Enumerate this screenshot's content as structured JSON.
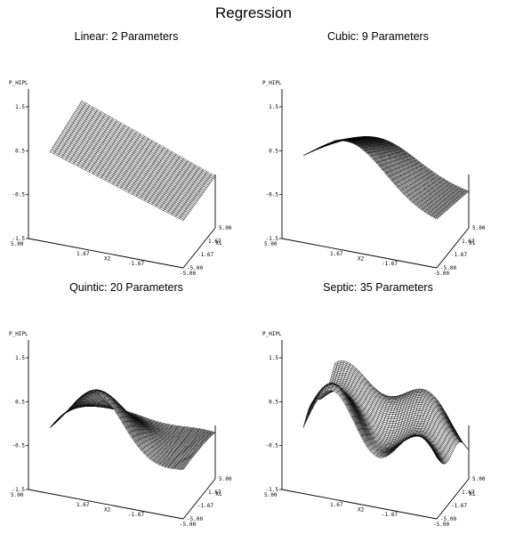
{
  "title": "Regression",
  "chart_data": [
    {
      "type": "surface",
      "title": "Linear: 2 Parameters",
      "zlabel": "P_HIPL",
      "xlabel": "X2",
      "ylabel": "X1",
      "zticks": [
        "1.5",
        "0.5",
        "-0.5",
        "-1.5"
      ],
      "x2ticks": [
        "5.00",
        "1.67",
        "-1.67",
        "-5.00"
      ],
      "x1ticks": [
        "5.00",
        "1.67",
        "-1.67",
        "-5.00"
      ],
      "zlim": [
        -1.5,
        1.5
      ],
      "x1lim": [
        -5,
        5
      ],
      "x2lim": [
        -5,
        5
      ],
      "model": "linear",
      "degree": 1,
      "parameters": 2
    },
    {
      "type": "surface",
      "title": "Cubic: 9 Parameters",
      "zlabel": "P_HIPL",
      "xlabel": "X2",
      "ylabel": "X1",
      "zticks": [
        "1.5",
        "0.5",
        "-0.5",
        "-1.5"
      ],
      "x2ticks": [
        "5.00",
        "1.67",
        "-1.67",
        "-5.00"
      ],
      "x1ticks": [
        "5.00",
        "1.67",
        "-1.67",
        "-5.00"
      ],
      "zlim": [
        -1.5,
        1.5
      ],
      "x1lim": [
        -5,
        5
      ],
      "x2lim": [
        -5,
        5
      ],
      "model": "cubic",
      "degree": 3,
      "parameters": 9
    },
    {
      "type": "surface",
      "title": "Quintic: 20 Parameters",
      "zlabel": "P_HIPL",
      "xlabel": "X2",
      "ylabel": "X1",
      "zticks": [
        "1.5",
        "0.5",
        "-0.5",
        "-1.5"
      ],
      "x2ticks": [
        "5.00",
        "1.67",
        "-1.67",
        "-5.00"
      ],
      "x1ticks": [
        "5.00",
        "1.67",
        "-1.67",
        "-5.00"
      ],
      "zlim": [
        -1.5,
        1.5
      ],
      "x1lim": [
        -5,
        5
      ],
      "x2lim": [
        -5,
        5
      ],
      "model": "quintic",
      "degree": 5,
      "parameters": 20
    },
    {
      "type": "surface",
      "title": "Septic: 35 Parameters",
      "zlabel": "P_HIPL",
      "xlabel": "X2",
      "ylabel": "X1",
      "zticks": [
        "1.5",
        "0.5",
        "-0.5",
        "-1.5"
      ],
      "x2ticks": [
        "5.00",
        "1.67",
        "-1.67",
        "-5.00"
      ],
      "x1ticks": [
        "5.00",
        "1.67",
        "-1.67",
        "-5.00"
      ],
      "zlim": [
        -1.5,
        1.5
      ],
      "x1lim": [
        -5,
        5
      ],
      "x2lim": [
        -5,
        5
      ],
      "model": "septic",
      "degree": 7,
      "parameters": 35
    }
  ]
}
